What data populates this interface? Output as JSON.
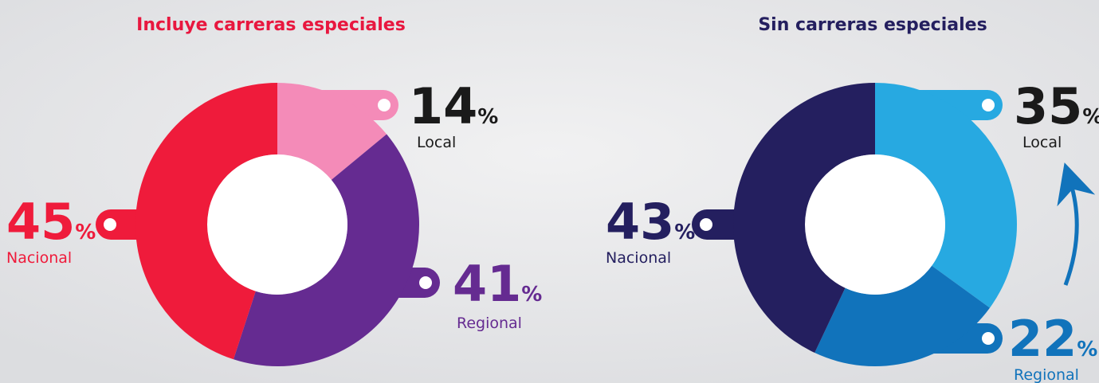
{
  "chart_data": [
    {
      "type": "donut",
      "title": "Incluye carreras especiales",
      "unit": "%",
      "categories": [
        "Local",
        "Regional",
        "Nacional"
      ],
      "values": [
        14,
        41,
        45
      ],
      "colors": [
        "#f48bb8",
        "#652b91",
        "#ef1b3b"
      ]
    },
    {
      "type": "donut",
      "title": "Sin carreras especiales",
      "unit": "%",
      "categories": [
        "Local",
        "Regional",
        "Nacional"
      ],
      "values": [
        35,
        22,
        43
      ],
      "colors": [
        "#27a9e1",
        "#1173bb",
        "#241f5f"
      ]
    }
  ]
}
